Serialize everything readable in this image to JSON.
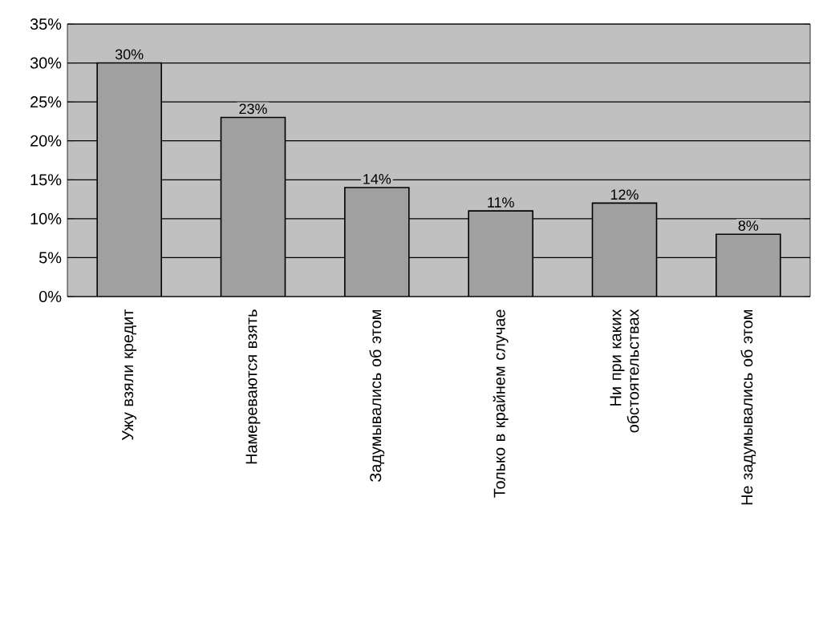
{
  "chart_data": {
    "type": "bar",
    "categories": [
      "Ужу взяли кредит",
      "Намереваются взять",
      "Задумывались об этом",
      "Только в крайнем случае",
      "Ни при каких обстоятельствах",
      "Не задумывались об этом"
    ],
    "values": [
      30,
      23,
      14,
      11,
      12,
      8
    ],
    "value_labels": [
      "30%",
      "23%",
      "14%",
      "11%",
      "12%",
      "8%"
    ],
    "color": "#a0a0a0",
    "ylim": [
      0,
      35
    ],
    "yticks": [
      {
        "value": 0,
        "label": "0%"
      },
      {
        "value": 5,
        "label": "5%"
      },
      {
        "value": 10,
        "label": "10%"
      },
      {
        "value": 15,
        "label": "15%"
      },
      {
        "value": 20,
        "label": "20%"
      },
      {
        "value": 25,
        "label": "25%"
      },
      {
        "value": 30,
        "label": "30%"
      },
      {
        "value": 35,
        "label": "35%"
      }
    ],
    "grid": "y"
  }
}
